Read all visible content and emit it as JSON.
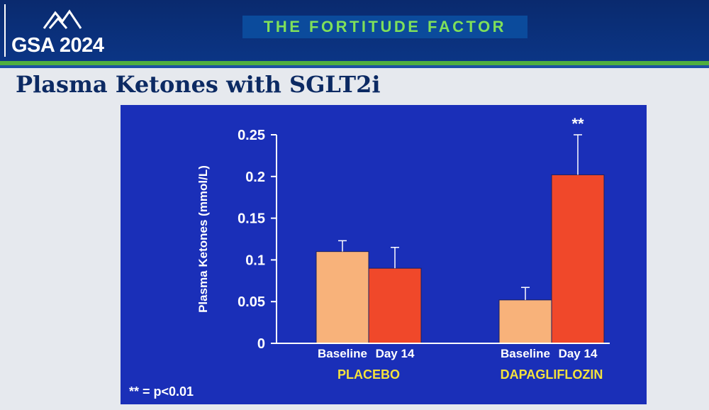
{
  "header": {
    "logo_text": "GSA 2024",
    "banner_text": "THE FORTITUDE FACTOR"
  },
  "slide": {
    "title": "Plasma Ketones with SGLT2i",
    "footnote": "** = p<0.01"
  },
  "colors": {
    "header_bg": "#0b3585",
    "accent_green": "#4fae3f",
    "banner_text": "#7fe05a",
    "chart_bg": "#1a2fb8",
    "baseline_bar": "#f8b27a",
    "day14_bar": "#f0482a",
    "group_label": "#f4e23c",
    "title_text": "#0c2a63"
  },
  "chart_data": {
    "type": "bar",
    "title": "",
    "ylabel": "Plasma Ketones (mmol/L)",
    "ylim": [
      0,
      0.25
    ],
    "yticks": [
      "0",
      "0.05",
      "0.1",
      "0.15",
      "0.2",
      "0.25"
    ],
    "groups": [
      {
        "name": "PLACEBO",
        "bars": [
          {
            "label": "Baseline",
            "value": 0.11,
            "error": 0.013
          },
          {
            "label": "Day 14",
            "value": 0.09,
            "error": 0.025
          }
        ]
      },
      {
        "name": "DAPAGLIFLOZIN",
        "bars": [
          {
            "label": "Baseline",
            "value": 0.052,
            "error": 0.015
          },
          {
            "label": "Day 14",
            "value": 0.202,
            "error": 0.048,
            "annotation": "**"
          }
        ]
      }
    ],
    "grid": false,
    "legend": "none"
  }
}
